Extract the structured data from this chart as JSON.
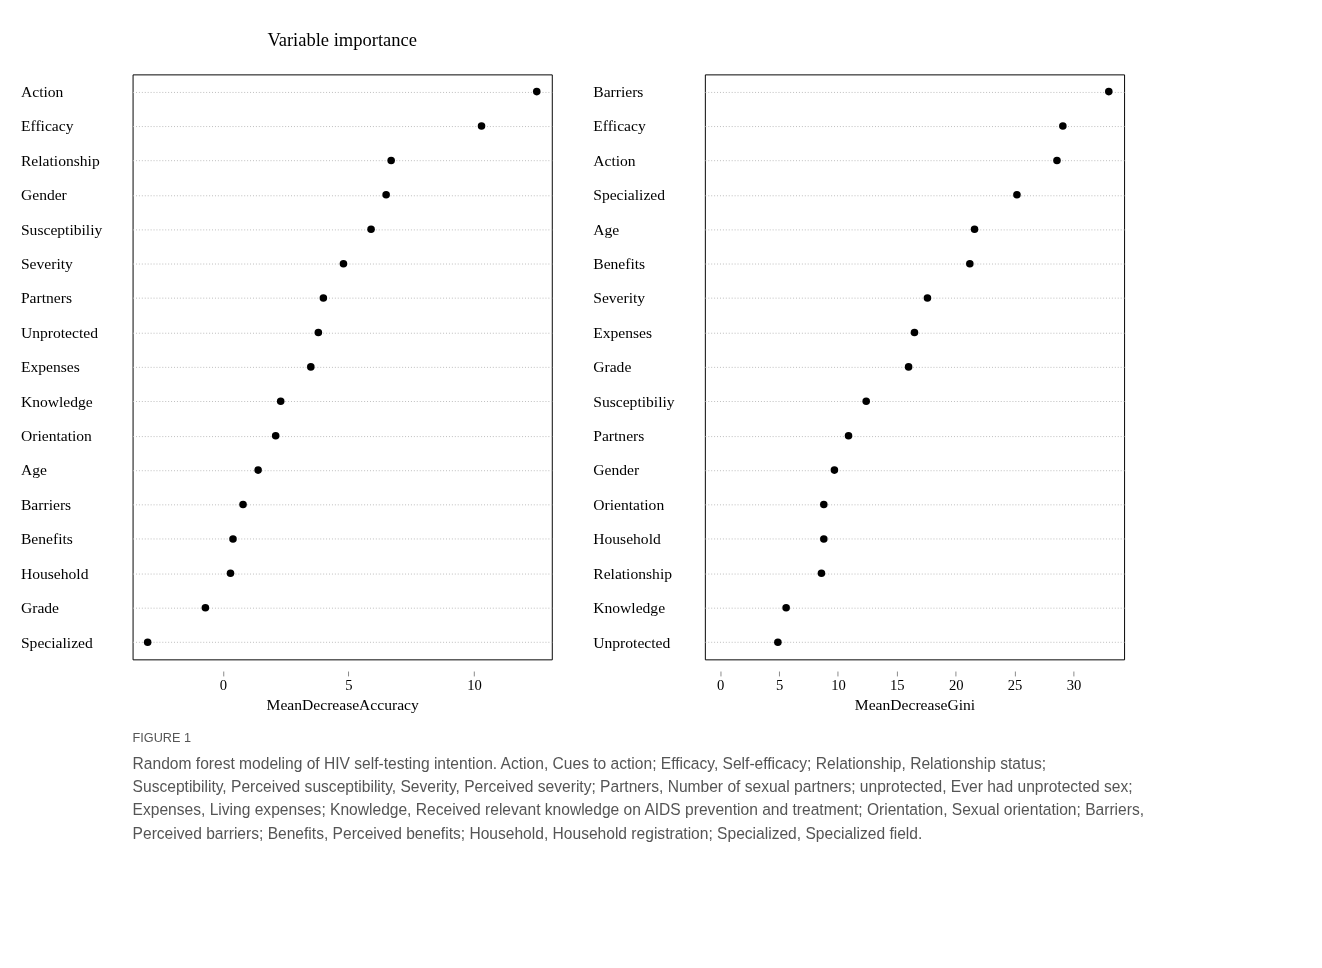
{
  "chart_data": [
    {
      "type": "scatter",
      "orientation": "horizontal",
      "title": "Variable importance",
      "xlabel": "MeanDecreaseAccuracy",
      "marker": "circle",
      "color": "#000000",
      "grid": "y",
      "line_style": "dotted",
      "categories": [
        "Action",
        "Efficacy",
        "Relationship",
        "Gender",
        "Susceptibiliy",
        "Severity",
        "Partners",
        "Unprotected",
        "Expenses",
        "Knowledge",
        "Orientation",
        "Age",
        "Barriers",
        "Benefits",
        "Household",
        "Grade",
        "Specialized"
      ],
      "values": [
        12.5,
        10.3,
        6.7,
        6.5,
        5.9,
        4.8,
        4.0,
        3.8,
        3.5,
        2.3,
        2.1,
        1.4,
        0.8,
        0.4,
        0.3,
        -0.7,
        -3.0
      ],
      "xlim": [
        -3.6,
        13.1
      ],
      "xticks": [
        0,
        5,
        10
      ],
      "annotations": [
        "FIGURE 1",
        "Random forest modeling of HIV self-testing intention. Action, Cues to action; Efficacy, Self-efficacy; Relationship, Relationship status; Susceptibility, Perceived susceptibility, Severity, Perceived severity; Partners, Number of sexual partners; unprotected, Ever had unprotected sex; Expenses, Living expenses; Knowledge, Received relevant knowledge on AIDS prevention and treatment; Orientation, Sexual orientation; Barriers, Perceived barriers; Benefits, Perceived benefits; Household, Household registration; Specialized, Specialized field."
      ]
    },
    {
      "type": "scatter",
      "orientation": "horizontal",
      "xlabel": "MeanDecreaseGini",
      "marker": "circle",
      "color": "#000000",
      "grid": "y",
      "line_style": "dotted",
      "categories": [
        "Barriers",
        "Efficacy",
        "Action",
        "Specialized",
        "Age",
        "Benefits",
        "Severity",
        "Expenses",
        "Grade",
        "Susceptibiliy",
        "Partners",
        "Gender",
        "Orientation",
        "Household",
        "Relationship",
        "Knowledge",
        "Unprotected"
      ],
      "values": [
        33.0,
        29.1,
        28.6,
        25.2,
        21.6,
        21.2,
        17.6,
        16.5,
        16.0,
        12.4,
        10.9,
        9.7,
        8.8,
        8.8,
        8.6,
        5.6,
        4.9
      ],
      "xlim": [
        -1.3,
        34.3
      ],
      "xticks": [
        0,
        5,
        10,
        15,
        20,
        25,
        30
      ]
    }
  ]
}
